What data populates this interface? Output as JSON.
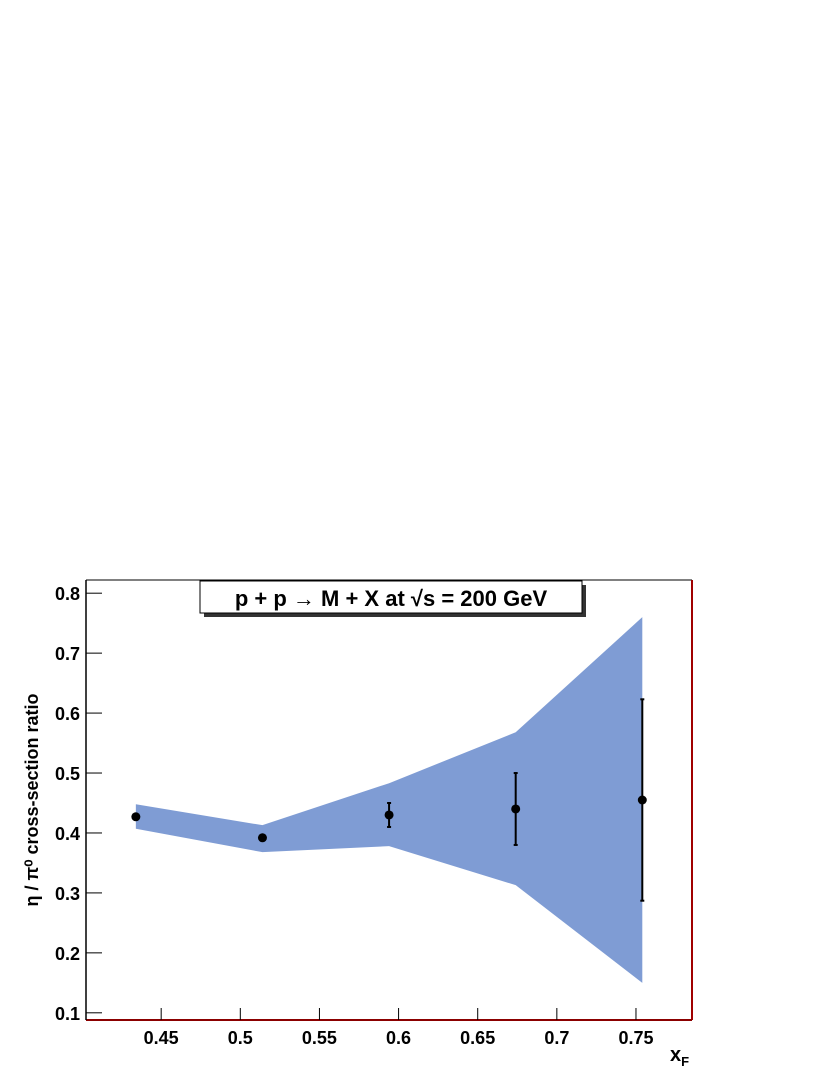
{
  "chart_data": {
    "type": "errorbar-band",
    "title": "p + p → M + X at √s = 200 GeV",
    "y_label": "η / π⁰ cross-section ratio",
    "x_label": "x",
    "x_label_sub": "F",
    "x": [
      0.434,
      0.514,
      0.594,
      0.674,
      0.754
    ],
    "values": [
      0.427,
      0.392,
      0.43,
      0.44,
      0.455
    ],
    "errors": [
      0.003,
      0.003,
      0.02,
      0.06,
      0.168
    ],
    "band_upper": [
      0.448,
      0.413,
      0.483,
      0.568,
      0.76
    ],
    "band_lower": [
      0.407,
      0.368,
      0.378,
      0.313,
      0.15
    ],
    "band_color": "#7f9cd4",
    "point_color": "#000000",
    "xlim": [
      0.4025,
      0.7854
    ],
    "ylim": [
      0.088,
      0.822
    ],
    "xticks": [
      0.45,
      0.5,
      0.55,
      0.6,
      0.65,
      0.7,
      0.75
    ],
    "yticks": [
      0.1,
      0.2,
      0.3,
      0.4,
      0.5,
      0.6,
      0.7,
      0.8
    ]
  }
}
